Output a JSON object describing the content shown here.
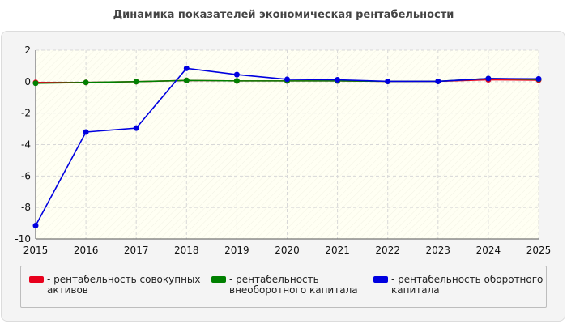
{
  "chart_data": {
    "type": "line",
    "title": "Динамика показателей экономическая рентабельности",
    "x": [
      "2015",
      "2016",
      "2017",
      "2018",
      "2019",
      "2020",
      "2021",
      "2022",
      "2023",
      "2024",
      "2025"
    ],
    "ylim": [
      -10,
      2
    ],
    "yticks": [
      2,
      0,
      -2,
      -4,
      -6,
      -8,
      -10
    ],
    "grid": true,
    "legend_position": "bottom",
    "series": [
      {
        "name": "- рентабельность совокупных активов",
        "color": "#e8001c",
        "values": [
          -0.05,
          -0.05,
          0.0,
          0.08,
          0.05,
          0.05,
          0.05,
          0.02,
          0.02,
          0.12,
          0.1
        ]
      },
      {
        "name": "- рентабельность внеоборотного капитала",
        "color": "#008000",
        "values": [
          -0.1,
          -0.05,
          0.0,
          0.08,
          0.05,
          0.05,
          0.05,
          0.02,
          0.02,
          0.2,
          0.15
        ]
      },
      {
        "name": "- рентабельность оборотного капитала",
        "color": "#0000e0",
        "values": [
          -9.15,
          -3.2,
          -2.95,
          0.85,
          0.45,
          0.15,
          0.12,
          0.02,
          0.02,
          0.2,
          0.18
        ]
      }
    ]
  }
}
